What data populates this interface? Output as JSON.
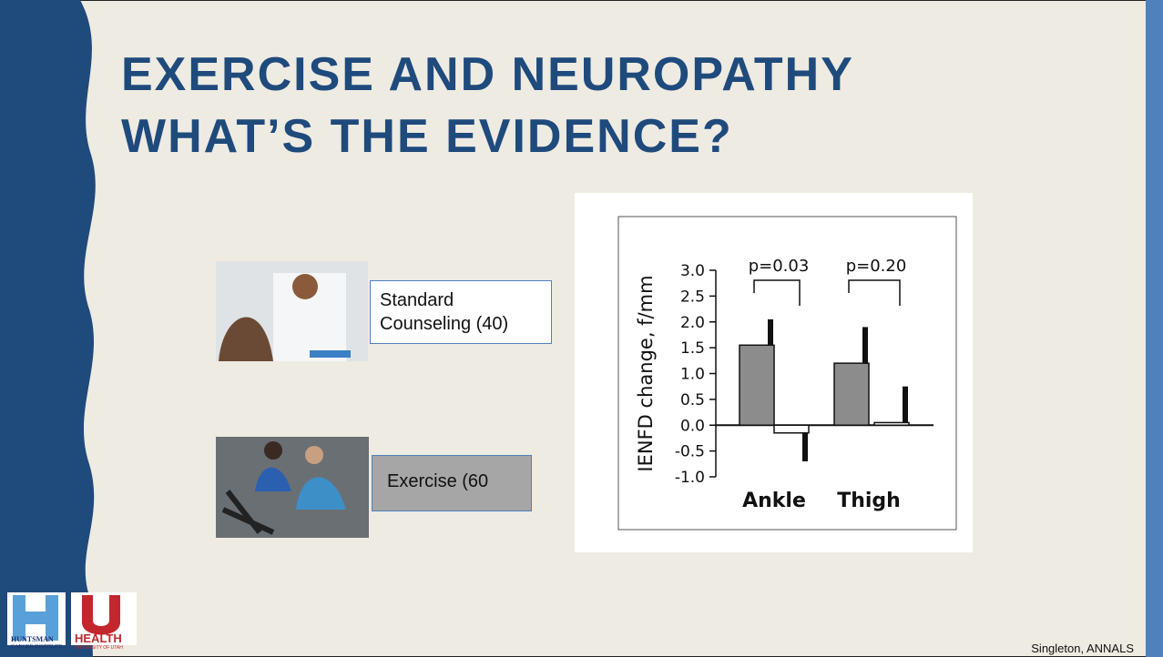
{
  "slide": {
    "title_lines": [
      "EXERCISE AND NEUROPATHY",
      "WHAT’S THE EVIDENCE?"
    ],
    "groups": [
      {
        "label": "Standard Counseling (40)"
      },
      {
        "label": "Exercise (60"
      }
    ],
    "citation": "Singleton, ANNALS",
    "logos": {
      "left": [
        "HUNTSMAN",
        "CANCER INSTITUTE"
      ],
      "right": [
        "HEALTH",
        "UNIVERSITY OF UTAH"
      ]
    }
  },
  "chart": {
    "type": "bar",
    "ylabel": "IENFD change, f/mm",
    "categories": [
      "Ankle",
      "Thigh"
    ],
    "series": [
      {
        "color": "#8c8c8c",
        "values": [
          1.55,
          1.2
        ],
        "errors": [
          0.5,
          0.7
        ]
      },
      {
        "color": "#ffffff",
        "values": [
          -0.15,
          0.05
        ],
        "errors": [
          0.55,
          0.7
        ]
      }
    ],
    "annotations": [
      "p=0.03",
      "p=0.20"
    ],
    "ylim": [
      -1,
      3
    ],
    "yticks": [
      {
        "value": 3,
        "label": "3.0"
      },
      {
        "value": 2.5,
        "label": "2.5"
      },
      {
        "value": 2,
        "label": "2.0"
      },
      {
        "value": 1.5,
        "label": "1.5"
      },
      {
        "value": 1,
        "label": "1.0"
      },
      {
        "value": 0.5,
        "label": "0.5"
      },
      {
        "value": 0,
        "label": "0.0"
      },
      {
        "value": -0.5,
        "label": "-0.5"
      },
      {
        "value": -1,
        "label": "-1.0"
      }
    ]
  }
}
